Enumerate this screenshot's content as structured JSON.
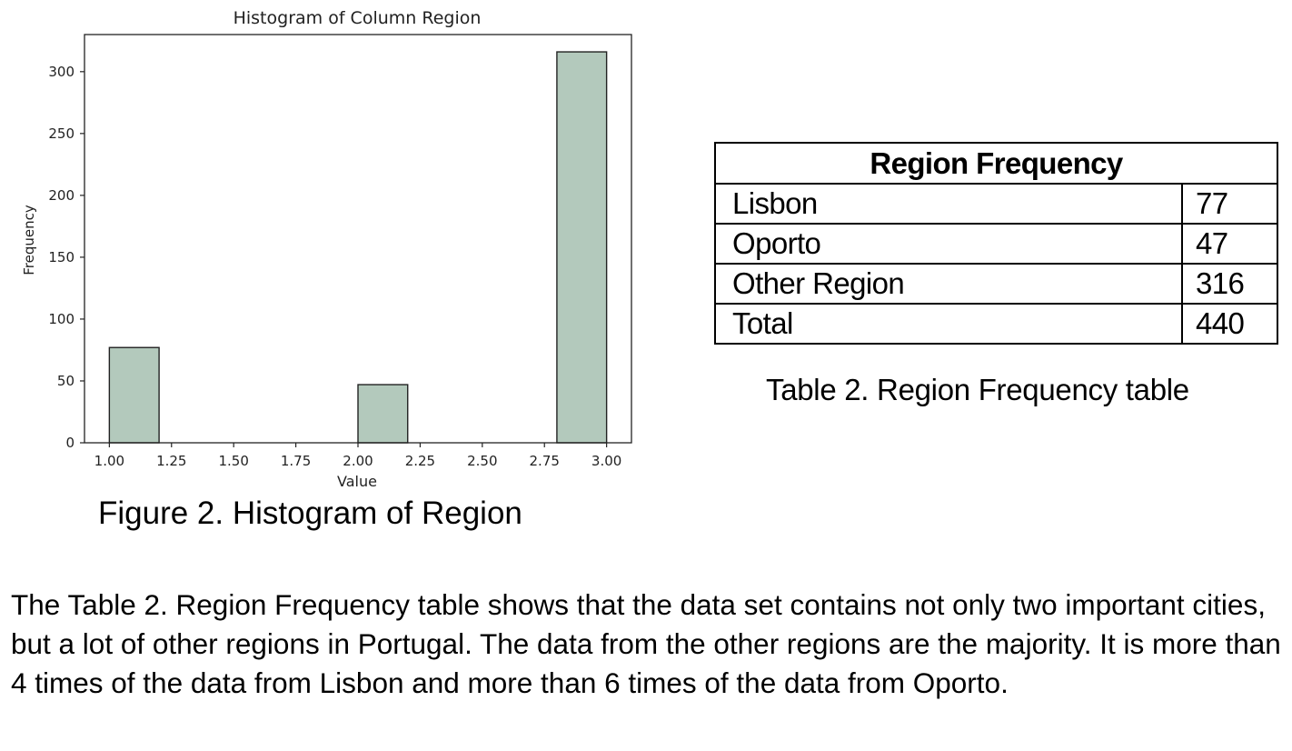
{
  "figure": {
    "caption": "Figure 2. Histogram of Region"
  },
  "chart_data": {
    "type": "bar",
    "title": "Histogram of Column Region",
    "xlabel": "Value",
    "ylabel": "Frequency",
    "xlim": [
      0.9,
      3.1
    ],
    "ylim": [
      0,
      330
    ],
    "xticks": [
      "1.00",
      "1.25",
      "1.50",
      "1.75",
      "2.00",
      "2.25",
      "2.50",
      "2.75",
      "3.00"
    ],
    "yticks": [
      "0",
      "50",
      "100",
      "150",
      "200",
      "250",
      "300"
    ],
    "bins": [
      {
        "x0": 1.0,
        "x1": 1.2,
        "value": 77
      },
      {
        "x0": 1.2,
        "x1": 1.4,
        "value": 0
      },
      {
        "x0": 1.4,
        "x1": 1.6,
        "value": 0
      },
      {
        "x0": 1.6,
        "x1": 1.8,
        "value": 0
      },
      {
        "x0": 1.8,
        "x1": 2.0,
        "value": 0
      },
      {
        "x0": 2.0,
        "x1": 2.2,
        "value": 47
      },
      {
        "x0": 2.2,
        "x1": 2.4,
        "value": 0
      },
      {
        "x0": 2.4,
        "x1": 2.6,
        "value": 0
      },
      {
        "x0": 2.6,
        "x1": 2.8,
        "value": 0
      },
      {
        "x0": 2.8,
        "x1": 3.0,
        "value": 316
      }
    ],
    "bar_color": "#b3c9bc",
    "edge_color": "#222222",
    "grid": false
  },
  "table": {
    "title": "Region Frequency",
    "rows": [
      {
        "label": "Lisbon",
        "value": "77"
      },
      {
        "label": "Oporto",
        "value": "47"
      },
      {
        "label": "Other Region",
        "value": "316"
      },
      {
        "label": "Total",
        "value": "440"
      }
    ],
    "caption": "Table 2. Region Frequency table"
  },
  "paragraph": "The Table 2. Region Frequency table shows that the data set contains not only two important cities, but a lot of other regions in Portugal. The data from the other regions are the majority. It is more than 4 times of the data from Lisbon and more than 6 times of the data from Oporto."
}
